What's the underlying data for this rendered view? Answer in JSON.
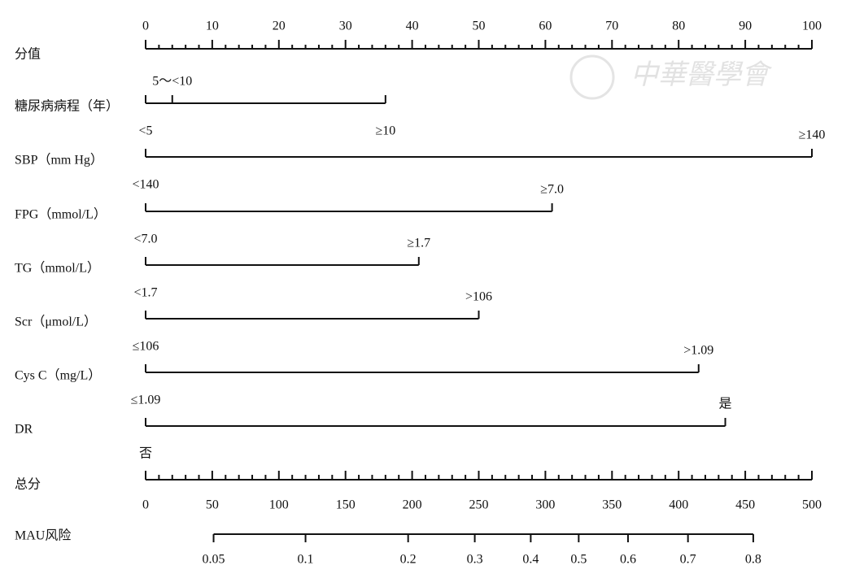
{
  "chart_data": {
    "type": "nomogram",
    "watermark": "中華醫學會",
    "points_axis": {
      "label": "分值",
      "lim": [
        0,
        100
      ],
      "ticks": [
        0,
        10,
        20,
        30,
        40,
        50,
        60,
        70,
        80,
        90,
        100
      ],
      "minor_ticks": [
        2,
        4,
        6,
        8,
        12,
        14,
        16,
        18,
        22,
        24,
        26,
        28,
        32,
        34,
        36,
        38,
        42,
        44,
        46,
        48,
        52,
        54,
        56,
        58,
        62,
        64,
        66,
        68,
        72,
        74,
        76,
        78,
        82,
        84,
        86,
        88,
        92,
        94,
        96,
        98
      ]
    },
    "variables": [
      {
        "label": "糖尿病病程（年）",
        "levels": [
          "<5",
          "5～<10",
          "≥10"
        ],
        "points": [
          0,
          4,
          36
        ],
        "label_side": [
          "below",
          "above",
          "below"
        ]
      },
      {
        "label": "SBP（mm Hg）",
        "levels": [
          "<140",
          "≥140"
        ],
        "points": [
          0,
          100
        ],
        "label_side": [
          "below",
          "above"
        ]
      },
      {
        "label": "FPG（mmol/L）",
        "levels": [
          "<7.0",
          "≥7.0"
        ],
        "points": [
          0,
          61
        ],
        "label_side": [
          "below",
          "above"
        ]
      },
      {
        "label": "TG（mmol/L）",
        "levels": [
          "<1.7",
          "≥1.7"
        ],
        "points": [
          0,
          41
        ],
        "label_side": [
          "below",
          "above"
        ]
      },
      {
        "label": "Scr（μmol/L）",
        "levels": [
          "≤106",
          ">106"
        ],
        "points": [
          0,
          50
        ],
        "label_side": [
          "below",
          "above"
        ]
      },
      {
        "label": "Cys C（mg/L）",
        "levels": [
          "≤1.09",
          ">1.09"
        ],
        "points": [
          0,
          83
        ],
        "label_side": [
          "below",
          "above"
        ]
      },
      {
        "label": "DR",
        "levels": [
          "否",
          "是"
        ],
        "points": [
          0,
          87
        ],
        "label_side": [
          "below",
          "above"
        ]
      }
    ],
    "total_axis": {
      "label": "总分",
      "lim": [
        0,
        500
      ],
      "ticks": [
        0,
        50,
        100,
        150,
        200,
        250,
        300,
        350,
        400,
        450,
        500
      ],
      "minor_ticks": [
        10,
        20,
        30,
        40,
        60,
        70,
        80,
        90,
        110,
        120,
        130,
        140,
        160,
        170,
        180,
        190,
        210,
        220,
        230,
        240,
        260,
        270,
        280,
        290,
        310,
        320,
        330,
        340,
        360,
        370,
        380,
        390,
        410,
        420,
        430,
        440,
        460,
        470,
        480,
        490
      ]
    },
    "risk_axis": {
      "label": "MAU风险",
      "ticks": [
        0.05,
        0.1,
        0.2,
        0.3,
        0.4,
        0.5,
        0.6,
        0.7,
        0.8
      ],
      "tick_points": [
        51,
        120,
        197,
        247,
        289,
        325,
        362,
        407,
        456
      ]
    }
  }
}
